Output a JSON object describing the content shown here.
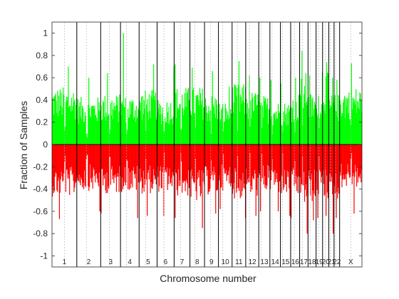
{
  "chart_data": {
    "type": "bar",
    "xlabel": "Chromosome number",
    "ylabel": "Fraction of Samples",
    "ylim": [
      -1.1,
      1.1
    ],
    "yticks": [
      -1,
      -0.8,
      -0.6,
      -0.4,
      -0.2,
      0,
      0.2,
      0.4,
      0.6,
      0.8,
      1
    ],
    "ytick_labels": [
      "-1",
      "-0.8",
      "-0.6",
      "-0.4",
      "-0.2",
      "0",
      "0.2",
      "0.4",
      "0.6",
      "0.8",
      "1"
    ],
    "grid": false,
    "colors": {
      "gain": "#00ff00",
      "loss": "#ff0000",
      "boundary": "#000000",
      "centromere": "#b0b0b0"
    },
    "chromosomes": [
      {
        "label": "1",
        "start": 0.0,
        "end": 0.08,
        "centromere": 0.04,
        "gain_mean": 0.4,
        "gain_peak": 0.7,
        "loss_mean": -0.36,
        "loss_peak": -0.67
      },
      {
        "label": "2",
        "start": 0.08,
        "end": 0.157,
        "centromere": 0.111,
        "gain_mean": 0.33,
        "gain_peak": 0.6,
        "loss_mean": -0.32,
        "loss_peak": -0.6
      },
      {
        "label": "3",
        "start": 0.157,
        "end": 0.221,
        "centromere": 0.185,
        "gain_mean": 0.35,
        "gain_peak": 0.64,
        "loss_mean": -0.34,
        "loss_peak": -0.62
      },
      {
        "label": "4",
        "start": 0.221,
        "end": 0.281,
        "centromere": 0.24,
        "gain_mean": 0.34,
        "gain_peak": 1.0,
        "loss_mean": -0.33,
        "loss_peak": -0.66
      },
      {
        "label": "5",
        "start": 0.281,
        "end": 0.339,
        "centromere": 0.302,
        "gain_mean": 0.38,
        "gain_peak": 0.72,
        "loss_mean": -0.34,
        "loss_peak": -0.64
      },
      {
        "label": "6",
        "start": 0.339,
        "end": 0.394,
        "centromere": 0.361,
        "gain_mean": 0.32,
        "gain_peak": 0.7,
        "loss_mean": -0.33,
        "loss_peak": -0.64
      },
      {
        "label": "7",
        "start": 0.394,
        "end": 0.445,
        "centromere": 0.415,
        "gain_mean": 0.4,
        "gain_peak": 0.72,
        "loss_mean": -0.36,
        "loss_peak": -0.66
      },
      {
        "label": "8",
        "start": 0.445,
        "end": 0.492,
        "centromere": 0.461,
        "gain_mean": 0.4,
        "gain_peak": 0.69,
        "loss_mean": -0.4,
        "loss_peak": -0.75
      },
      {
        "label": "9",
        "start": 0.492,
        "end": 0.537,
        "centromere": 0.512,
        "gain_mean": 0.35,
        "gain_peak": 0.66,
        "loss_mean": -0.35,
        "loss_peak": -0.62
      },
      {
        "label": "10",
        "start": 0.537,
        "end": 0.581,
        "centromere": 0.551,
        "gain_mean": 0.3,
        "gain_peak": 0.52,
        "loss_mean": -0.32,
        "loss_peak": -0.58
      },
      {
        "label": "11",
        "start": 0.581,
        "end": 0.625,
        "centromere": 0.598,
        "gain_mean": 0.42,
        "gain_peak": 0.75,
        "loss_mean": -0.38,
        "loss_peak": -0.66
      },
      {
        "label": "12",
        "start": 0.625,
        "end": 0.667,
        "centromere": 0.637,
        "gain_mean": 0.37,
        "gain_peak": 0.62,
        "loss_mean": -0.36,
        "loss_peak": -0.64
      },
      {
        "label": "13",
        "start": 0.667,
        "end": 0.703,
        "centromere": 0.675,
        "gain_mean": 0.34,
        "gain_peak": 0.6,
        "loss_mean": -0.33,
        "loss_peak": -0.6
      },
      {
        "label": "14",
        "start": 0.703,
        "end": 0.737,
        "centromere": 0.71,
        "gain_mean": 0.3,
        "gain_peak": 0.58,
        "loss_mean": -0.34,
        "loss_peak": -0.6
      },
      {
        "label": "15",
        "start": 0.737,
        "end": 0.77,
        "centromere": 0.744,
        "gain_mean": 0.3,
        "gain_peak": 0.55,
        "loss_mean": -0.36,
        "loss_peak": -0.64
      },
      {
        "label": "16",
        "start": 0.77,
        "end": 0.799,
        "centromere": 0.782,
        "gain_mean": 0.36,
        "gain_peak": 0.6,
        "loss_mean": -0.38,
        "loss_peak": -0.66
      },
      {
        "label": "17",
        "start": 0.799,
        "end": 0.826,
        "centromere": 0.808,
        "gain_mean": 0.5,
        "gain_peak": 0.84,
        "loss_mean": -0.42,
        "loss_peak": -0.8
      },
      {
        "label": "18",
        "start": 0.826,
        "end": 0.852,
        "centromere": 0.833,
        "gain_mean": 0.36,
        "gain_peak": 0.62,
        "loss_mean": -0.4,
        "loss_peak": -0.68
      },
      {
        "label": "19",
        "start": 0.852,
        "end": 0.873,
        "centromere": 0.861,
        "gain_mean": 0.42,
        "gain_peak": 0.65,
        "loss_mean": -0.36,
        "loss_peak": -0.66
      },
      {
        "label": "20",
        "start": 0.873,
        "end": 0.893,
        "centromere": 0.882,
        "gain_mean": 0.5,
        "gain_peak": 0.74,
        "loss_mean": -0.38,
        "loss_peak": -0.64
      },
      {
        "label": "21",
        "start": 0.893,
        "end": 0.91,
        "centromere": 0.898,
        "gain_mean": 0.35,
        "gain_peak": 0.6,
        "loss_mean": -0.44,
        "loss_peak": -0.8
      },
      {
        "label": "22",
        "start": 0.91,
        "end": 0.928,
        "centromere": 0.915,
        "gain_mean": 0.35,
        "gain_peak": 0.58,
        "loss_mean": -0.38,
        "loss_peak": -0.66
      },
      {
        "label": "X",
        "start": 0.928,
        "end": 1.0,
        "centromere": 0.964,
        "gain_mean": 0.4,
        "gain_peak": 0.73,
        "loss_mean": -0.3,
        "loss_peak": -0.62
      }
    ]
  }
}
